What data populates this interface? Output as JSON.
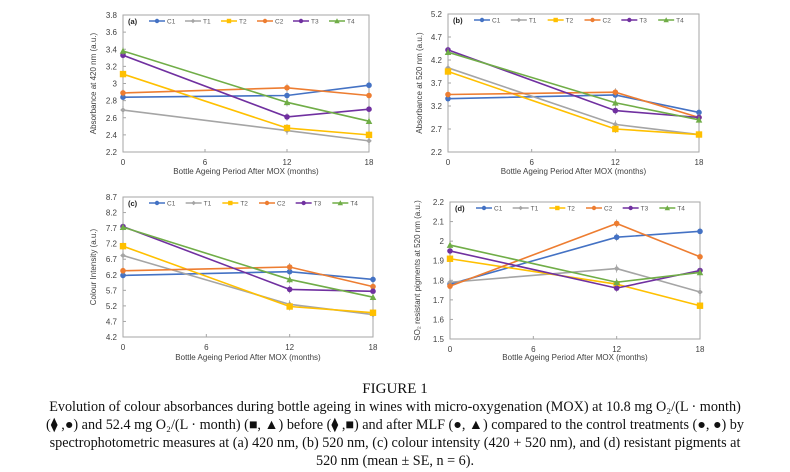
{
  "figure": {
    "label": "FIGURE 1",
    "caption_lines": [
      "Evolution of colour absorbances during bottle ageing in wines with micro-oxygenation (MOX) at 10.8 mg O₂/(L · month)",
      "(⧫ ,●) and 52.4 mg O₂/(L · month) (■, ▲) before (⧫ ,■) and after MLF (●, ▲) compared to the control treatments (●, ●) by",
      "spectrophotometric measures at (a) 420 nm, (b) 520 nm, (c) colour intensity (420 + 520 nm), and (d)  resistant pigments at",
      "520 nm  (mean ±  SE, n = 6)."
    ]
  },
  "series_styles": [
    {
      "name": "C1",
      "color": "#4472c4",
      "marker": "circle"
    },
    {
      "name": "T1",
      "color": "#a5a5a5",
      "marker": "diamond"
    },
    {
      "name": "T2",
      "color": "#ffc000",
      "marker": "square"
    },
    {
      "name": "C2",
      "color": "#ed7d31",
      "marker": "circle"
    },
    {
      "name": "T3",
      "color": "#7030a0",
      "marker": "circle"
    },
    {
      "name": "T4",
      "color": "#70ad47",
      "marker": "triangle"
    }
  ],
  "chart_data": [
    {
      "type": "line",
      "panel": "(a)",
      "title": "",
      "xlabel": "Bottle Ageing Period After MOX (months)",
      "ylabel": "Absorbance at 420 nm (a.u.)",
      "x": [
        0,
        12,
        18
      ],
      "xticks": [
        "0",
        "6",
        "12",
        "18"
      ],
      "xlim": [
        0,
        18
      ],
      "ylim": [
        2.2,
        3.8
      ],
      "yticks": [
        "2.2",
        "2.4",
        "2.6",
        "2.8",
        "3",
        "3.2",
        "3.4",
        "3.6",
        "3.8"
      ],
      "legend": "top",
      "grid": false,
      "series": [
        {
          "name": "C1",
          "values": [
            2.84,
            2.86,
            2.98
          ]
        },
        {
          "name": "T1",
          "values": [
            2.69,
            2.45,
            2.33
          ]
        },
        {
          "name": "T2",
          "values": [
            3.11,
            2.48,
            2.4
          ]
        },
        {
          "name": "C2",
          "values": [
            2.89,
            2.95,
            2.86
          ]
        },
        {
          "name": "T3",
          "values": [
            3.33,
            2.61,
            2.7
          ]
        },
        {
          "name": "T4",
          "values": [
            3.38,
            2.78,
            2.56
          ]
        }
      ]
    },
    {
      "type": "line",
      "panel": "(b)",
      "title": "",
      "xlabel": "Bottle Ageing Period After MOX (months)",
      "ylabel": "Absorbance at 520 nm (a.u.)",
      "x": [
        0,
        12,
        18
      ],
      "xticks": [
        "0",
        "6",
        "12",
        "18"
      ],
      "xlim": [
        0,
        18
      ],
      "ylim": [
        2.2,
        5.2
      ],
      "yticks": [
        "2.2",
        "2.7",
        "3.2",
        "3.7",
        "4.2",
        "4.7",
        "5.2"
      ],
      "legend": "top",
      "grid": false,
      "series": [
        {
          "name": "C1",
          "values": [
            3.36,
            3.44,
            3.06
          ]
        },
        {
          "name": "T1",
          "values": [
            4.03,
            2.8,
            2.58
          ]
        },
        {
          "name": "T2",
          "values": [
            3.95,
            2.7,
            2.58
          ]
        },
        {
          "name": "C2",
          "values": [
            3.45,
            3.5,
            2.95
          ]
        },
        {
          "name": "T3",
          "values": [
            4.42,
            3.1,
            2.95
          ]
        },
        {
          "name": "T4",
          "values": [
            4.37,
            3.27,
            2.9
          ]
        }
      ]
    },
    {
      "type": "line",
      "panel": "(c)",
      "title": "",
      "xlabel": "Bottle Ageing Period After MOX (months)",
      "ylabel": "Colour Intensity (a.u.)",
      "x": [
        0,
        12,
        18
      ],
      "xticks": [
        "0",
        "6",
        "12",
        "18"
      ],
      "xlim": [
        0,
        18
      ],
      "ylim": [
        4.2,
        8.7
      ],
      "yticks": [
        "4.2",
        "4.7",
        "5.2",
        "5.7",
        "6.2",
        "6.7",
        "7.2",
        "7.7",
        "8.2",
        "8.7"
      ],
      "legend": "top",
      "grid": false,
      "series": [
        {
          "name": "C1",
          "values": [
            6.18,
            6.3,
            6.05
          ]
        },
        {
          "name": "T1",
          "values": [
            6.82,
            5.25,
            4.92
          ]
        },
        {
          "name": "T2",
          "values": [
            7.12,
            5.18,
            4.98
          ]
        },
        {
          "name": "C2",
          "values": [
            6.33,
            6.45,
            5.82
          ]
        },
        {
          "name": "T3",
          "values": [
            7.75,
            5.73,
            5.67
          ]
        },
        {
          "name": "T4",
          "values": [
            7.73,
            6.05,
            5.48
          ]
        }
      ]
    },
    {
      "type": "line",
      "panel": "(d)",
      "title": "",
      "xlabel": "Bottle Ageing Period After MOX (months)",
      "ylabel": "SO₂ resistant pigments  at 520 nm (a.u.)",
      "x": [
        0,
        12,
        18
      ],
      "xticks": [
        "0",
        "6",
        "12",
        "18"
      ],
      "xlim": [
        0,
        18
      ],
      "ylim": [
        1.5,
        2.2
      ],
      "yticks": [
        "1.5",
        "1.6",
        "1.7",
        "1.8",
        "1.9",
        "2",
        "2.1",
        "2.2"
      ],
      "legend": "top",
      "grid": false,
      "series": [
        {
          "name": "C1",
          "values": [
            1.78,
            2.02,
            2.05
          ]
        },
        {
          "name": "T1",
          "values": [
            1.79,
            1.86,
            1.74
          ]
        },
        {
          "name": "T2",
          "values": [
            1.91,
            1.78,
            1.67
          ]
        },
        {
          "name": "C2",
          "values": [
            1.77,
            2.09,
            1.92
          ]
        },
        {
          "name": "T3",
          "values": [
            1.95,
            1.76,
            1.85
          ]
        },
        {
          "name": "T4",
          "values": [
            1.98,
            1.79,
            1.84
          ]
        }
      ]
    }
  ]
}
